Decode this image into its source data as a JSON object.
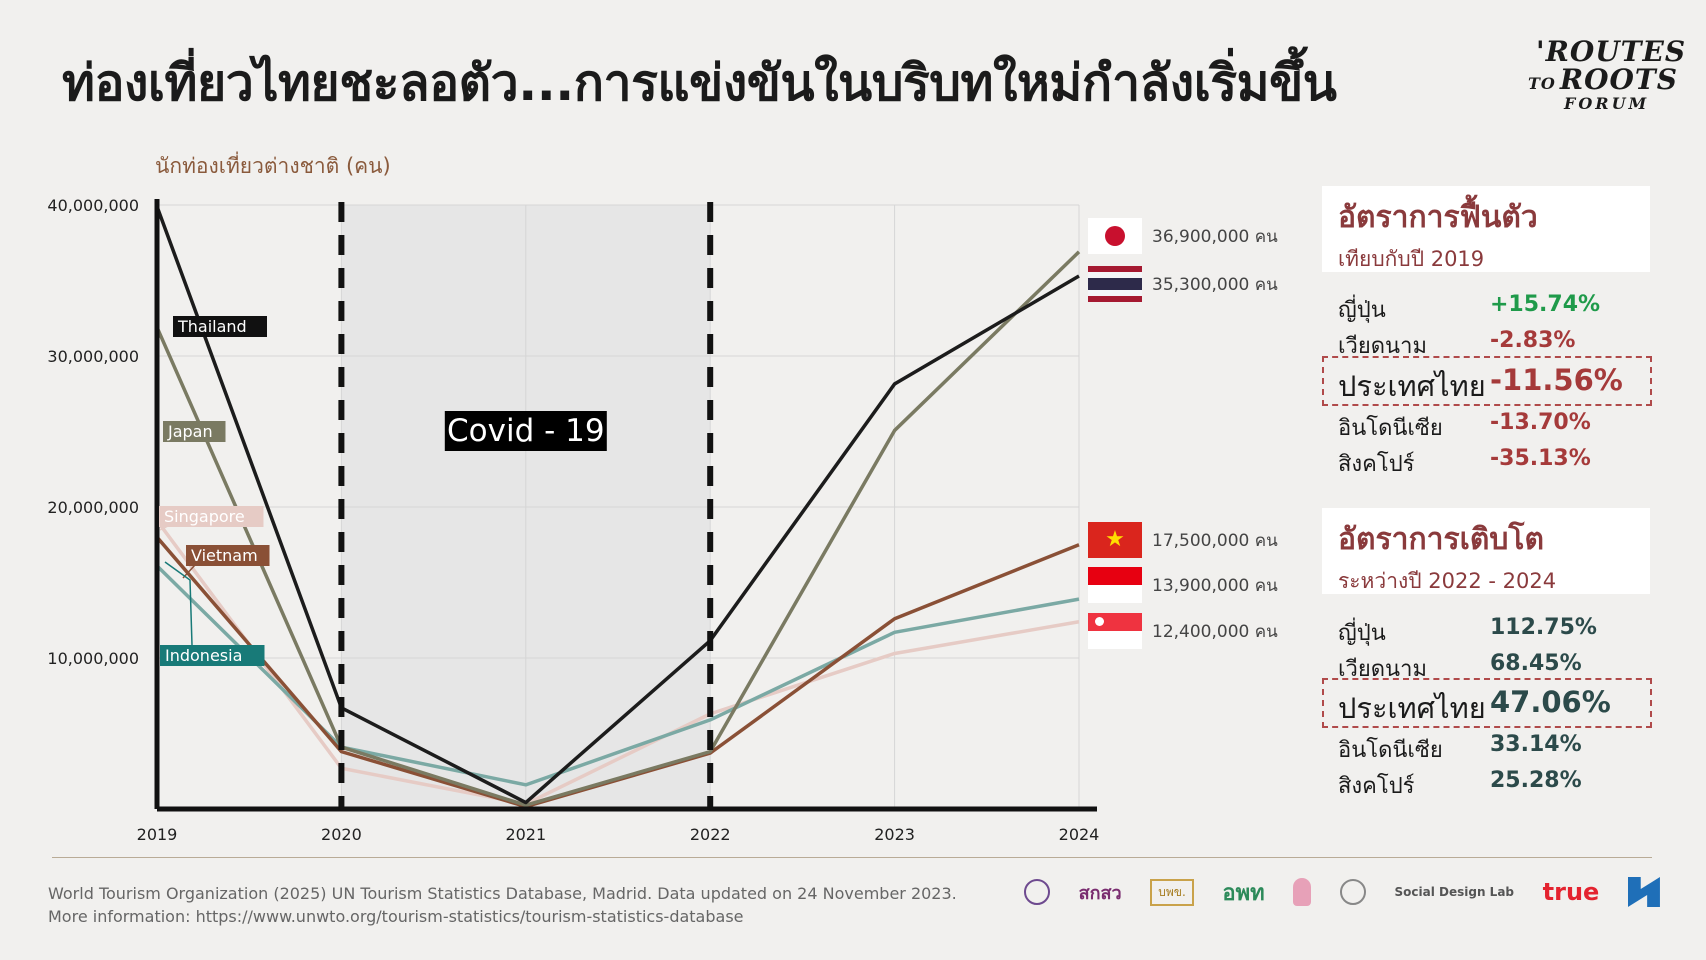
{
  "title": "ท่องเที่ยวไทยชะลอตัว...การแข่งขันในบริบทใหม่กำลังเริ่มขึ้น",
  "logo": {
    "line1": "'ROUTES",
    "line2_small": "TO",
    "line2": "ROOTS",
    "line3": "FORUM"
  },
  "chart_data": {
    "type": "line",
    "ylabel": "นักท่องเที่ยวต่างชาติ (คน)",
    "x": [
      "2019",
      "2020",
      "2021",
      "2022",
      "2023",
      "2024"
    ],
    "ylim": [
      0,
      40000000
    ],
    "y_ticks": [
      10000000,
      20000000,
      30000000,
      40000000
    ],
    "y_tick_labels": [
      "10,000,000",
      "20,000,000",
      "30,000,000",
      "40,000,000"
    ],
    "grid": true,
    "shaded_region": {
      "from": "2020",
      "to": "2022",
      "label": "Covid - 19"
    },
    "series": [
      {
        "name": "Thailand",
        "color": "#1c1c1c",
        "values": [
          39900000,
          6700000,
          430000,
          11150000,
          28150000,
          35300000
        ]
      },
      {
        "name": "Japan",
        "color": "#7a7a62",
        "values": [
          31900000,
          4100000,
          250000,
          3800000,
          25070000,
          36900000
        ]
      },
      {
        "name": "Singapore",
        "color": "#e6cbc5",
        "values": [
          19100000,
          2700000,
          330000,
          6300000,
          10300000,
          12400000
        ]
      },
      {
        "name": "Vietnam",
        "color": "#8a5036",
        "values": [
          18000000,
          3800000,
          160000,
          3700000,
          12600000,
          17500000
        ]
      },
      {
        "name": "Indonesia",
        "color": "#7ba9a4",
        "values": [
          16100000,
          4100000,
          1600000,
          5900000,
          11700000,
          13900000
        ]
      }
    ]
  },
  "end_values": [
    {
      "country": "japan",
      "label": "36,900,000 คน"
    },
    {
      "country": "thailand",
      "label": "35,300,000 คน"
    },
    {
      "country": "vietnam",
      "label": "17,500,000 คน"
    },
    {
      "country": "indonesia",
      "label": "13,900,000 คน"
    },
    {
      "country": "singapore",
      "label": "12,400,000 คน"
    }
  ],
  "recovery": {
    "heading": "อัตราการฟื้นตัว",
    "subheading": "เทียบกับปี 2019",
    "rows": [
      {
        "name": "ญี่ปุ่น",
        "value": "+15.74%",
        "color": "#1f9a4a"
      },
      {
        "name": "เวียดนาม",
        "value": "-2.83%",
        "color": "#a53a3a"
      },
      {
        "name": "ประเทศไทย",
        "value": "-11.56%",
        "color": "#a53a3a"
      },
      {
        "name": "อินโดนีเซีย",
        "value": "-13.70%",
        "color": "#a53a3a"
      },
      {
        "name": "สิงคโปร์",
        "value": "-35.13%",
        "color": "#a53a3a"
      }
    ]
  },
  "growth": {
    "heading": "อัตราการเติบโต",
    "subheading": "ระหว่างปี 2022 - 2024",
    "rows": [
      {
        "name": "ญี่ปุ่น",
        "value": "112.75%",
        "color": "#2c4a4a"
      },
      {
        "name": "เวียดนาม",
        "value": "68.45%",
        "color": "#2c4a4a"
      },
      {
        "name": "ประเทศไทย",
        "value": "47.06%",
        "color": "#2c4a4a"
      },
      {
        "name": "อินโดนีเซีย",
        "value": "33.14%",
        "color": "#2c4a4a"
      },
      {
        "name": "สิงคโปร์",
        "value": "25.28%",
        "color": "#2c4a4a"
      }
    ]
  },
  "source": {
    "line1": "World Tourism Organization (2025) UN Tourism Statistics Database, Madrid. Data updated on 24 November 2023.",
    "line2": "More information: https://www.unwto.org/tourism-statistics/tourism-statistics-database"
  },
  "partners": {
    "p2": "สกสว",
    "p3": "บพข.",
    "p4": "อพท",
    "p7": "Social Design Lab",
    "p8": "true"
  }
}
